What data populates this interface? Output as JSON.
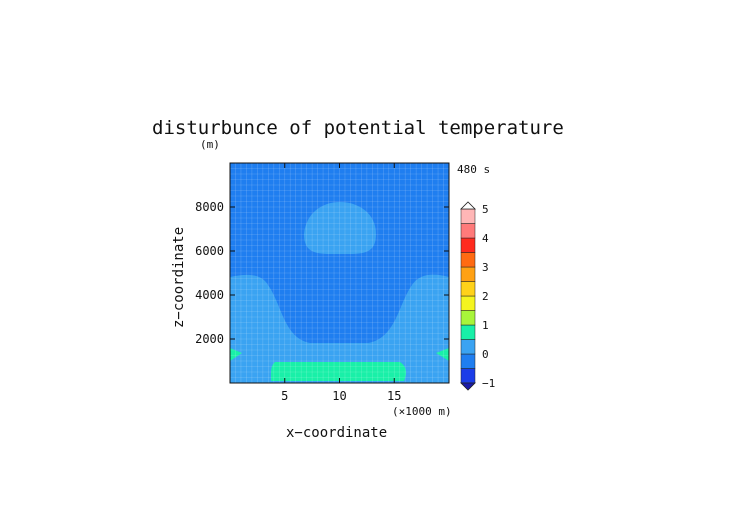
{
  "chart_data": {
    "type": "heatmap",
    "title": "disturbunce of potential temperature",
    "ylabel": "z−coordinate",
    "yunit": "(m)",
    "xlabel": "x−coordinate",
    "xunit": "(×1000 m)",
    "time_label": "480 s",
    "xlim": [
      0,
      20
    ],
    "ylim": [
      0,
      10000
    ],
    "x_ticks": [
      5,
      10,
      15
    ],
    "x_tick_labels": [
      "5",
      "10",
      "15"
    ],
    "y_ticks": [
      2000,
      4000,
      6000,
      8000
    ],
    "y_tick_labels": [
      "2000",
      "4000",
      "6000",
      "8000"
    ],
    "grid": true,
    "colorbar": {
      "levels": [
        -1,
        -0.5,
        0,
        0.5,
        1,
        1.5,
        2,
        2.5,
        3,
        3.5,
        4,
        4.5,
        5
      ],
      "labels": [
        "−1",
        "0",
        "1",
        "2",
        "3",
        "4",
        "5"
      ],
      "label_values": [
        -1,
        0,
        1,
        2,
        3,
        4,
        5
      ],
      "colors": [
        "#1b3de8",
        "#1f7ef0",
        "#3aa3f2",
        "#19f0a8",
        "#a8f53a",
        "#f5f51f",
        "#ffd21a",
        "#ffa114",
        "#ff6a12",
        "#ff2a1e",
        "#ff7a7a",
        "#ffb6b6"
      ]
    },
    "regions": [
      {
        "name": "background",
        "value_range": [
          -0.5,
          0
        ]
      },
      {
        "name": "top-cell",
        "value_range": [
          0,
          0.5
        ],
        "x_range": [
          6.8,
          13.2
        ],
        "z_range": [
          5900,
          8200
        ]
      },
      {
        "name": "side-lobes",
        "value_range": [
          0,
          0.5
        ],
        "x_range": [
          0,
          20
        ],
        "z_range": [
          0,
          4900
        ]
      },
      {
        "name": "bottom-warm",
        "value_range": [
          0.5,
          1
        ],
        "x_range": [
          3.8,
          16.2
        ],
        "z_range": [
          0,
          1000
        ]
      },
      {
        "name": "edge-warm",
        "value_range": [
          0.5,
          1
        ],
        "x_range": [
          0,
          20
        ],
        "z_range": [
          1100,
          1600
        ]
      }
    ]
  }
}
